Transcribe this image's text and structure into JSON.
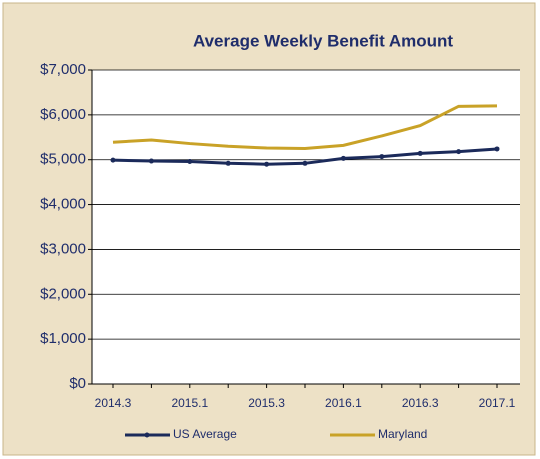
{
  "chart_data": {
    "type": "line",
    "title": "Average Weekly Benefit Amount",
    "categories": [
      "2014.3",
      null,
      "2015.1",
      null,
      "2015.3",
      null,
      "2016.1",
      null,
      "2016.3",
      null,
      "2017.1"
    ],
    "series": [
      {
        "name": "US Average",
        "color": "#1b2a5a",
        "markers": true,
        "values": [
          4990,
          4970,
          4960,
          4920,
          4900,
          4920,
          5030,
          5070,
          5140,
          5180,
          5240
        ]
      },
      {
        "name": "Maryland",
        "color": "#c9a227",
        "markers": false,
        "values": [
          5390,
          5440,
          5360,
          5300,
          5260,
          5250,
          5320,
          5530,
          5760,
          6190,
          6200
        ]
      }
    ],
    "ylim": [
      0,
      7000
    ],
    "yticks": [
      {
        "value": 0,
        "label": "$0"
      },
      {
        "value": 1000,
        "label": "$1,000"
      },
      {
        "value": 2000,
        "label": "$2,000"
      },
      {
        "value": 3000,
        "label": "$3,000"
      },
      {
        "value": 4000,
        "label": "$4,000"
      },
      {
        "value": 5000,
        "label": "$5,000"
      },
      {
        "value": 6000,
        "label": "$6,000"
      },
      {
        "value": 7000,
        "label": "$7,000"
      }
    ],
    "grid": true,
    "legend": "bottom"
  }
}
